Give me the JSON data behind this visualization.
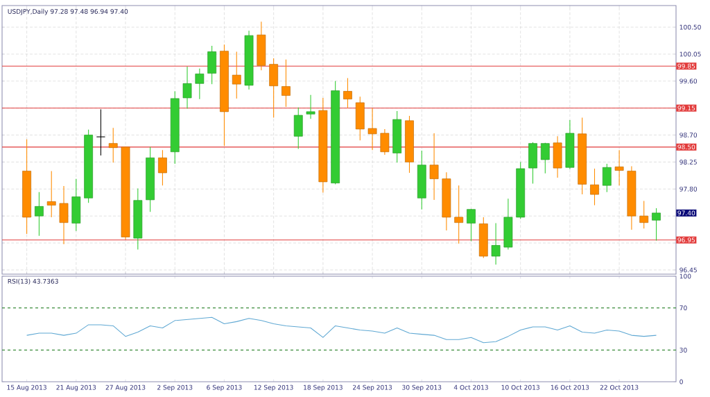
{
  "chart_data": [
    {
      "type": "candlestick",
      "title": "USDJPY,Daily  97.28 97.48 96.94 97.40",
      "categories": [
        null,
        null,
        null,
        null,
        null,
        null,
        null,
        null,
        null,
        null,
        null,
        null,
        null,
        null,
        null,
        null,
        null,
        null,
        null,
        null,
        null,
        null,
        null,
        null,
        null,
        null,
        null,
        null,
        null,
        null,
        null,
        null,
        null,
        null,
        null,
        null,
        null,
        null,
        null,
        null,
        null,
        null,
        null,
        null,
        null,
        null,
        null,
        null,
        null,
        null,
        null,
        null
      ],
      "ohlc": [
        [
          98.1,
          98.63,
          97.05,
          97.33
        ],
        [
          97.35,
          97.75,
          97.02,
          97.51
        ],
        [
          97.59,
          98.1,
          97.33,
          97.53
        ],
        [
          97.56,
          97.85,
          96.88,
          97.24
        ],
        [
          97.23,
          97.97,
          97.1,
          97.67
        ],
        [
          97.65,
          98.79,
          97.57,
          98.7
        ],
        [
          98.67,
          99.13,
          98.36,
          98.67
        ],
        [
          98.56,
          98.82,
          98.24,
          98.49
        ],
        [
          98.5,
          98.51,
          96.96,
          97.0
        ],
        [
          96.98,
          97.81,
          96.79,
          97.61
        ],
        [
          97.62,
          98.5,
          97.42,
          98.32
        ],
        [
          98.32,
          98.45,
          97.86,
          98.07
        ],
        [
          98.42,
          99.43,
          98.22,
          99.31
        ],
        [
          99.32,
          99.84,
          99.14,
          99.56
        ],
        [
          99.56,
          99.81,
          99.3,
          99.72
        ],
        [
          99.73,
          100.19,
          99.55,
          100.09
        ],
        [
          100.1,
          100.21,
          98.52,
          99.09
        ],
        [
          99.7,
          100.09,
          99.31,
          99.55
        ],
        [
          99.53,
          100.44,
          99.46,
          100.36
        ],
        [
          100.37,
          100.59,
          99.78,
          99.86
        ],
        [
          99.88,
          99.98,
          98.99,
          99.52
        ],
        [
          99.51,
          99.96,
          99.17,
          99.36
        ],
        [
          98.68,
          99.16,
          98.47,
          99.03
        ],
        [
          99.05,
          99.37,
          98.97,
          99.09
        ],
        [
          99.11,
          99.32,
          97.74,
          97.92
        ],
        [
          97.9,
          99.6,
          97.88,
          99.44
        ],
        [
          99.43,
          99.65,
          99.15,
          99.3
        ],
        [
          99.24,
          99.34,
          98.61,
          98.8
        ],
        [
          98.81,
          99.15,
          98.45,
          98.72
        ],
        [
          98.73,
          98.8,
          98.37,
          98.42
        ],
        [
          98.4,
          99.1,
          98.24,
          98.96
        ],
        [
          98.94,
          99.02,
          98.07,
          98.25
        ],
        [
          97.65,
          98.44,
          97.46,
          98.2
        ],
        [
          98.2,
          98.73,
          97.62,
          97.97
        ],
        [
          97.97,
          98.08,
          97.11,
          97.33
        ],
        [
          97.33,
          97.86,
          96.89,
          97.24
        ],
        [
          97.23,
          97.47,
          96.93,
          97.46
        ],
        [
          97.22,
          97.33,
          96.65,
          96.68
        ],
        [
          96.68,
          97.23,
          96.54,
          96.86
        ],
        [
          96.83,
          97.64,
          96.79,
          97.33
        ],
        [
          97.33,
          98.25,
          97.3,
          98.14
        ],
        [
          98.15,
          98.58,
          97.89,
          98.56
        ],
        [
          98.29,
          98.57,
          98.06,
          98.56
        ],
        [
          98.57,
          98.68,
          97.99,
          98.15
        ],
        [
          98.16,
          98.95,
          98.13,
          98.73
        ],
        [
          98.72,
          98.99,
          97.71,
          97.88
        ],
        [
          97.87,
          98.14,
          97.53,
          97.71
        ],
        [
          97.86,
          98.22,
          97.75,
          98.16
        ],
        [
          98.17,
          98.45,
          97.86,
          98.11
        ],
        [
          98.1,
          98.18,
          97.12,
          97.35
        ],
        [
          97.35,
          97.6,
          97.14,
          97.24
        ],
        [
          97.28,
          97.48,
          96.94,
          97.4
        ]
      ],
      "colors": [
        "#ff8c00",
        "#33cc33",
        "#ff8c00",
        "#ff8c00",
        "#33cc33",
        "#33cc33",
        "#000000",
        "#ff8c00",
        "#ff8c00",
        "#33cc33",
        "#33cc33",
        "#ff8c00",
        "#33cc33",
        "#33cc33",
        "#33cc33",
        "#33cc33",
        "#ff8c00",
        "#ff8c00",
        "#33cc33",
        "#ff8c00",
        "#ff8c00",
        "#ff8c00",
        "#33cc33",
        "#33cc33",
        "#ff8c00",
        "#33cc33",
        "#ff8c00",
        "#ff8c00",
        "#ff8c00",
        "#ff8c00",
        "#33cc33",
        "#ff8c00",
        "#33cc33",
        "#ff8c00",
        "#ff8c00",
        "#ff8c00",
        "#33cc33",
        "#ff8c00",
        "#33cc33",
        "#33cc33",
        "#33cc33",
        "#33cc33",
        "#33cc33",
        "#ff8c00",
        "#33cc33",
        "#ff8c00",
        "#ff8c00",
        "#33cc33",
        "#ff8c00",
        "#ff8c00",
        "#ff8c00",
        "#33cc33"
      ],
      "ylim": [
        96.38,
        100.86
      ],
      "yticks": [
        96.45,
        {
          "value": 96.9,
          "label": null
        },
        {
          "value": 97.35,
          "label": null
        },
        {
          "value": 97.8,
          "label": "97.80"
        },
        98.25,
        {
          "value": 98.7,
          "label": "98.70"
        },
        {
          "value": 99.15,
          "label": null
        },
        {
          "value": 99.6,
          "label": "99.60"
        },
        100.05,
        {
          "value": 100.5,
          "label": "100.50"
        }
      ],
      "grid": true,
      "tick_labels": "y",
      "ref_lines": [
        {
          "axis": "y",
          "value": 99.85,
          "label": "99.85",
          "color": "#e23b3b"
        },
        {
          "axis": "y",
          "value": 99.15,
          "label": "99.15",
          "color": "#e23b3b"
        },
        {
          "axis": "y",
          "value": 98.5,
          "label": "98.50",
          "color": "#e23b3b"
        },
        {
          "axis": "y",
          "value": 96.95,
          "label": "96.95",
          "color": "#e23b3b"
        }
      ],
      "annotations": [
        "97.40"
      ]
    },
    {
      "type": "line",
      "title": "RSI(13) 43.7363",
      "categories": [
        "15 Aug 2013",
        null,
        null,
        null,
        "21 Aug 2013",
        null,
        null,
        null,
        "27 Aug 2013",
        null,
        null,
        null,
        "2 Sep 2013",
        null,
        null,
        null,
        "6 Sep 2013",
        null,
        null,
        null,
        "12 Sep 2013",
        null,
        null,
        null,
        "18 Sep 2013",
        null,
        null,
        null,
        "24 Sep 2013",
        null,
        null,
        null,
        "30 Sep 2013",
        null,
        null,
        null,
        "4 Oct 2013",
        null,
        null,
        null,
        "10 Oct 2013",
        null,
        null,
        null,
        "16 Oct 2013",
        null,
        null,
        null,
        "22 Oct 2013",
        null,
        null,
        null
      ],
      "values": [
        44,
        46,
        46,
        44,
        46,
        54,
        54,
        53,
        43,
        47,
        53,
        51,
        58,
        59,
        60,
        61,
        55,
        57,
        60,
        58,
        55,
        53,
        52,
        51,
        42,
        53,
        51,
        49,
        48,
        46,
        51,
        46,
        45,
        44,
        40,
        40,
        42,
        37,
        38,
        43,
        49,
        52,
        52,
        49,
        53,
        47,
        46,
        49,
        48,
        44,
        43,
        44
      ],
      "color": "#5fa8d3",
      "ylim": [
        0,
        100
      ],
      "yticks": [
        0,
        30,
        70,
        100
      ],
      "ref_lines": [
        {
          "axis": "y",
          "value": 70,
          "color": "#3c8c3c",
          "line_style": "dashed"
        },
        {
          "axis": "y",
          "value": 30,
          "color": "#3c8c3c",
          "line_style": "dashed"
        }
      ]
    }
  ]
}
